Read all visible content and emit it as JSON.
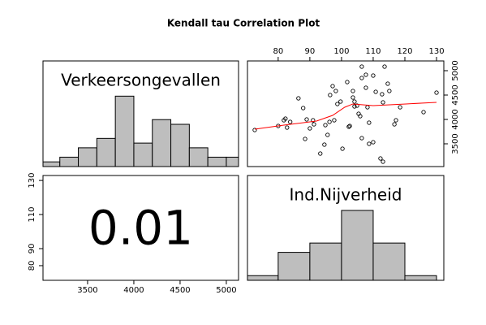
{
  "title": "Kendall tau Correlation Plot",
  "chart_data": [
    {
      "type": "histogram",
      "label": "Verkeersongevallen",
      "color": "#bebebe",
      "bins": [
        3000,
        3200,
        3400,
        3600,
        3800,
        4000,
        4200,
        4400,
        4600,
        4800,
        5000,
        5200
      ],
      "counts": [
        1,
        2,
        4,
        6,
        15,
        5,
        10,
        9,
        4,
        2,
        2
      ],
      "xlim": [
        3018,
        5132
      ],
      "ylim": [
        0,
        22.5
      ]
    },
    {
      "type": "scatter",
      "color": "#000000",
      "x": [
        72.6,
        80,
        81.8,
        82.3,
        82.8,
        86.4,
        87.9,
        89.0,
        91.0,
        91.3,
        90.0,
        88.5,
        93.3,
        94.6,
        94.9,
        95.6,
        96.4,
        97.2,
        98.2,
        98.7,
        99.7,
        96.2,
        97.7,
        100.3,
        101.8,
        102.3,
        102.6,
        103.6,
        103.6,
        104.1,
        104.1,
        104.9,
        105.4,
        105.9,
        106.4,
        106.4,
        107.7,
        107.7,
        108.2,
        108.7,
        106.4,
        108.7,
        110,
        110,
        110.8,
        112.8,
        113.6,
        113.1,
        113.1,
        112.3,
        114.6,
        115.1,
        116.7,
        117.2,
        118.5,
        125.9,
        130,
        83.8
      ],
      "y": [
        3783,
        3867,
        3983,
        4017,
        3833,
        4433,
        4233,
        4000,
        3983,
        3900,
        3817,
        3600,
        3300,
        3483,
        3883,
        3683,
        4500,
        4683,
        4583,
        4317,
        4367,
        3950,
        3983,
        3400,
        4767,
        3850,
        3867,
        4583,
        4450,
        4367,
        4267,
        4283,
        4117,
        4067,
        5083,
        4850,
        4650,
        4917,
        4250,
        3933,
        3617,
        3500,
        4900,
        3533,
        4567,
        4517,
        5083,
        4350,
        3133,
        3200,
        4733,
        4583,
        3900,
        3983,
        4250,
        4150,
        4550,
        3950
      ],
      "smooth": {
        "color": "#ff0000",
        "x": [
          72.6,
          81.8,
          92.1,
          97.2,
          101.0,
          103.6,
          110,
          120.3,
          130
        ],
        "y": [
          3800,
          3883,
          3967,
          4083,
          4250,
          4317,
          4283,
          4317,
          4350
        ]
      },
      "xlim": [
        70.3,
        132.3
      ],
      "ylim": [
        3033,
        5200
      ],
      "xticks": [
        80,
        90,
        100,
        110,
        120,
        130
      ],
      "yticks": [
        3500,
        4000,
        4500,
        5000
      ]
    },
    {
      "type": "text",
      "value": 0.01,
      "xlim": [
        3018,
        5132
      ],
      "ylim": [
        71.4,
        132.9
      ],
      "xticks": [
        3500,
        4000,
        4500,
        5000
      ],
      "yticks": [
        80,
        90,
        110,
        130
      ]
    },
    {
      "type": "histogram",
      "label": "Ind.Nijverheid",
      "color": "#bebebe",
      "bins": [
        70,
        80,
        90,
        100,
        110,
        120,
        130
      ],
      "counts": [
        1,
        6,
        8,
        15,
        8,
        1
      ],
      "xlim": [
        70.3,
        132.3
      ],
      "ylim": [
        0,
        22.5
      ]
    }
  ]
}
